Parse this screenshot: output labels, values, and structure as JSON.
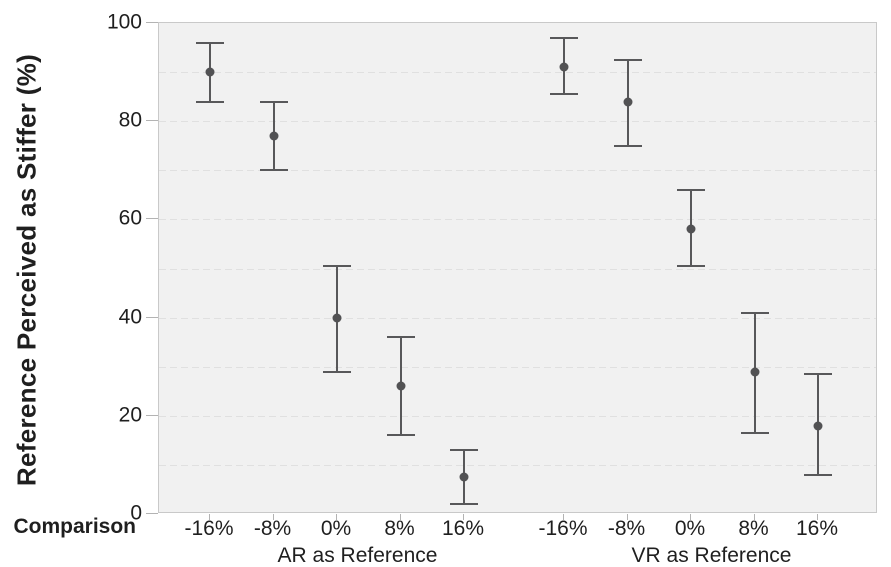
{
  "chart_data": {
    "type": "scatter",
    "subtype": "point-estimates-with-error-bars",
    "title": "",
    "ylabel": "Reference Perceived as Stiffer (%)",
    "xlabel": "Comparison",
    "ylim": [
      0,
      100
    ],
    "yticks": [
      0,
      20,
      40,
      60,
      80,
      100
    ],
    "grid_step": 10,
    "grid_style": "dashed horizontal every 10, light on gray panel",
    "legend": "none",
    "categories": [
      "-16%",
      "-8%",
      "0%",
      "8%",
      "16%"
    ],
    "groups": [
      {
        "label": "AR as Reference",
        "points": [
          {
            "category": "-16%",
            "mean": 90,
            "ci_low": 84,
            "ci_high": 96
          },
          {
            "category": "-8%",
            "mean": 77,
            "ci_low": 70,
            "ci_high": 84
          },
          {
            "category": "0%",
            "mean": 40,
            "ci_low": 29,
            "ci_high": 50.5
          },
          {
            "category": "8%",
            "mean": 26,
            "ci_low": 16,
            "ci_high": 36
          },
          {
            "category": "16%",
            "mean": 7.5,
            "ci_low": 2,
            "ci_high": 13
          }
        ]
      },
      {
        "label": "VR as Reference",
        "points": [
          {
            "category": "-16%",
            "mean": 91,
            "ci_low": 85.5,
            "ci_high": 97
          },
          {
            "category": "-8%",
            "mean": 84,
            "ci_low": 75,
            "ci_high": 92.5
          },
          {
            "category": "0%",
            "mean": 58,
            "ci_low": 50.5,
            "ci_high": 66
          },
          {
            "category": "8%",
            "mean": 29,
            "ci_low": 16.5,
            "ci_high": 41
          },
          {
            "category": "16%",
            "mean": 18,
            "ci_low": 8,
            "ci_high": 28.5
          }
        ]
      }
    ],
    "colors": {
      "marker": "#525254",
      "error_bar": "#58585a",
      "plot_background": "#f1f1f1",
      "plot_border": "#c9c9c9",
      "gridline": "#e0e0e0",
      "text": "#1f1f1f",
      "tick": "#b3b3b3"
    }
  }
}
